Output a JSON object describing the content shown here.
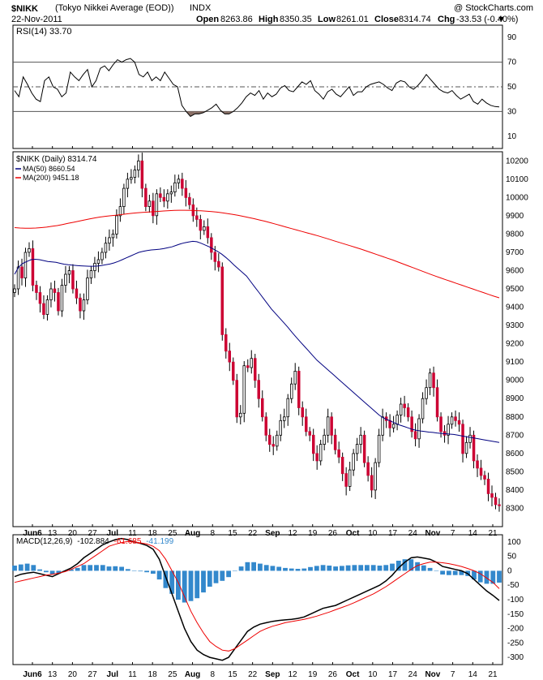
{
  "header": {
    "symbol": "$NIKK",
    "name": "(Tokyo Nikkei Average (EOD))",
    "exchange": "INDX",
    "watermark": "@ StockCharts.com",
    "date": "22-Nov-2011",
    "open_label": "Open",
    "open": "8263.86",
    "high_label": "High",
    "high": "8350.35",
    "low_label": "Low",
    "low": "8261.01",
    "close_label": "Close",
    "close": "8314.74",
    "chg_label": "Chg",
    "chg": "-33.53 (-0.40%)",
    "chg_arrow": "▼",
    "down_color": "#cc0033"
  },
  "chart_data": [
    {
      "type": "line",
      "panel": "rsi",
      "legend": "RSI(14) 33.70",
      "ylim": [
        0,
        100
      ],
      "yticks": [
        10,
        30,
        50,
        70,
        90
      ],
      "ref_lines": [
        30,
        50,
        70
      ],
      "series": [
        {
          "name": "RSI(14)",
          "color": "#000000",
          "values": [
            47,
            42,
            58,
            52,
            45,
            40,
            38,
            55,
            58,
            50,
            48,
            42,
            45,
            62,
            58,
            55,
            60,
            64,
            50,
            55,
            65,
            67,
            63,
            68,
            72,
            70,
            72,
            73,
            70,
            60,
            58,
            62,
            55,
            58,
            55,
            62,
            57,
            52,
            50,
            35,
            30,
            26,
            28,
            28,
            29,
            31,
            33,
            36,
            31,
            28,
            28,
            30,
            33,
            37,
            42,
            45,
            43,
            47,
            40,
            45,
            42,
            44,
            49,
            51,
            47,
            46,
            50,
            54,
            52,
            55,
            47,
            44,
            40,
            46,
            48,
            44,
            42,
            46,
            50,
            43,
            46,
            46,
            50,
            52,
            53,
            54,
            52,
            49,
            47,
            53,
            55,
            54,
            50,
            48,
            51,
            55,
            60,
            56,
            52,
            48,
            46,
            45,
            47,
            43,
            40,
            42,
            44,
            38,
            36,
            40,
            37,
            35,
            34,
            33.7
          ]
        }
      ]
    },
    {
      "type": "candlestick",
      "panel": "price",
      "legend_title": "$NIKK (Daily) 8314.74",
      "legend_series": [
        {
          "name": "MA(50) 8660.54",
          "color": "#000080"
        },
        {
          "name": "MA(200) 9451.18",
          "color": "#ee0000"
        }
      ],
      "ylim": [
        8200,
        10250
      ],
      "yticks": [
        8300,
        8400,
        8500,
        8600,
        8700,
        8800,
        8900,
        9000,
        9100,
        9200,
        9300,
        9400,
        9500,
        9600,
        9700,
        9800,
        9900,
        10000,
        10100,
        10200
      ],
      "up_color": "#ffffff",
      "down_color": "#cc0033",
      "close": [
        9500,
        9620,
        9560,
        9700,
        9720,
        9520,
        9480,
        9420,
        9360,
        9440,
        9500,
        9480,
        9380,
        9520,
        9580,
        9600,
        9500,
        9450,
        9380,
        9440,
        9560,
        9600,
        9640,
        9660,
        9700,
        9750,
        9780,
        9800,
        9900,
        9950,
        10050,
        10100,
        10110,
        10150,
        10200,
        10050,
        9950,
        9980,
        9900,
        10020,
        10000,
        9980,
        10020,
        10030,
        10080,
        10100,
        10050,
        10000,
        9960,
        9900,
        9880,
        9820,
        9840,
        9780,
        9700,
        9650,
        9620,
        9250,
        9160,
        9100,
        9000,
        8800,
        8820,
        9080,
        9070,
        9120,
        9000,
        8900,
        8800,
        8700,
        8650,
        8640,
        8700,
        8780,
        8800,
        8900,
        8980,
        9050,
        8850,
        8800,
        8720,
        8700,
        8600,
        8560,
        8650,
        8700,
        8800,
        8700,
        8620,
        8580,
        8490,
        8420,
        8510,
        8600,
        8650,
        8700,
        8550,
        8480,
        8400,
        8550,
        8700,
        8800,
        8780,
        8740,
        8760,
        8810,
        8870,
        8850,
        8800,
        8720,
        8680,
        8790,
        8900,
        8960,
        9040,
        8960,
        8800,
        8720,
        8700,
        8760,
        8800,
        8780,
        8760,
        8600,
        8660,
        8700,
        8560,
        8520,
        8480,
        8460,
        8380,
        8360,
        8320,
        8314.74
      ],
      "series": [
        {
          "name": "MA(50)",
          "color": "#000080",
          "values": [
            9580,
            9620,
            9640,
            9650,
            9660,
            9662,
            9660,
            9655,
            9650,
            9648,
            9645,
            9640,
            9635,
            9632,
            9630,
            9628,
            9626,
            9625,
            9624,
            9624,
            9625,
            9628,
            9632,
            9636,
            9642,
            9650,
            9660,
            9670,
            9680,
            9690,
            9700,
            9705,
            9710,
            9713,
            9715,
            9717,
            9720,
            9725,
            9730,
            9738,
            9746,
            9752,
            9756,
            9760,
            9758,
            9750,
            9740,
            9730,
            9718,
            9705,
            9690,
            9672,
            9652,
            9630,
            9610,
            9590,
            9570,
            9540,
            9510,
            9480,
            9450,
            9420,
            9390,
            9365,
            9340,
            9315,
            9290,
            9262,
            9235,
            9210,
            9185,
            9160,
            9135,
            9110,
            9090,
            9070,
            9050,
            9030,
            9010,
            8990,
            8970,
            8950,
            8930,
            8910,
            8890,
            8870,
            8850,
            8830,
            8810,
            8795,
            8785,
            8775,
            8765,
            8755,
            8748,
            8740,
            8732,
            8727,
            8723,
            8720,
            8717,
            8715,
            8712,
            8710,
            8708,
            8706,
            8704,
            8700,
            8696,
            8692,
            8688,
            8684,
            8680,
            8676,
            8672,
            8668,
            8664,
            8660.54
          ]
        },
        {
          "name": "MA(200)",
          "color": "#ee0000",
          "values": [
            9835,
            9833,
            9832,
            9832,
            9833,
            9835,
            9838,
            9842,
            9846,
            9852,
            9858,
            9864,
            9870,
            9876,
            9882,
            9888,
            9893,
            9897,
            9900,
            9903,
            9906,
            9910,
            9913,
            9916,
            9918,
            9920,
            9922,
            9924,
            9926,
            9928,
            9929,
            9930,
            9930,
            9929,
            9928,
            9927,
            9925,
            9923,
            9920,
            9916,
            9912,
            9907,
            9902,
            9896,
            9890,
            9884,
            9877,
            9870,
            9862,
            9854,
            9846,
            9838,
            9830,
            9822,
            9814,
            9806,
            9798,
            9790,
            9781,
            9772,
            9763,
            9754,
            9745,
            9736,
            9727,
            9718,
            9708,
            9698,
            9688,
            9678,
            9668,
            9658,
            9647,
            9636,
            9625,
            9614,
            9603,
            9592,
            9581,
            9570,
            9560,
            9550,
            9540,
            9530,
            9520,
            9510,
            9500,
            9490,
            9480,
            9470,
            9460,
            9451.18
          ]
        }
      ]
    },
    {
      "type": "line",
      "panel": "macd",
      "legend_prefix": "MACD(12,26,9)",
      "legend_macd": "-102.884",
      "legend_signal": "-61.685",
      "legend_hist": "-41.199",
      "macd_color": "#000000",
      "signal_color": "#ee0000",
      "hist_color": "#3388cc",
      "ylim": [
        -325,
        125
      ],
      "yticks": [
        100,
        50,
        0,
        -50,
        -100,
        -150,
        -200,
        -250,
        -300
      ],
      "series": [
        {
          "name": "MACD",
          "color": "#000000",
          "values": [
            -20,
            -12,
            -8,
            -5,
            -10,
            -15,
            -20,
            -10,
            0,
            10,
            25,
            45,
            60,
            75,
            90,
            100,
            108,
            112,
            108,
            100,
            95,
            88,
            75,
            40,
            -20,
            -80,
            -140,
            -200,
            -245,
            -275,
            -290,
            -300,
            -305,
            -310,
            -300,
            -270,
            -240,
            -210,
            -195,
            -185,
            -180,
            -175,
            -172,
            -170,
            -168,
            -165,
            -160,
            -150,
            -140,
            -130,
            -125,
            -120,
            -110,
            -100,
            -90,
            -80,
            -70,
            -60,
            -50,
            -35,
            -15,
            10,
            30,
            45,
            48,
            44,
            40,
            30,
            15,
            10,
            5,
            0,
            -10,
            -30,
            -50,
            -70,
            -85,
            -102.884
          ]
        },
        {
          "name": "Signal",
          "color": "#ee0000",
          "values": [
            -40,
            -35,
            -30,
            -25,
            -20,
            -15,
            -12,
            -8,
            -3,
            5,
            15,
            25,
            40,
            55,
            70,
            85,
            92,
            98,
            102,
            100,
            97,
            93,
            85,
            70,
            40,
            0,
            -40,
            -90,
            -140,
            -180,
            -215,
            -245,
            -262,
            -275,
            -278,
            -270,
            -255,
            -240,
            -225,
            -210,
            -200,
            -192,
            -186,
            -180,
            -176,
            -172,
            -168,
            -163,
            -157,
            -150,
            -143,
            -135,
            -127,
            -119,
            -110,
            -100,
            -90,
            -80,
            -68,
            -55,
            -40,
            -25,
            -10,
            5,
            18,
            25,
            30,
            30,
            28,
            25,
            20,
            15,
            8,
            0,
            -10,
            -25,
            -40,
            -61.685
          ]
        }
      ],
      "histogram": [
        18,
        22,
        25,
        20,
        5,
        -5,
        -12,
        -8,
        -2,
        5,
        10,
        20,
        20,
        20,
        20,
        15,
        16,
        14,
        6,
        0,
        -2,
        -5,
        -10,
        -30,
        -60,
        -80,
        -100,
        -110,
        -105,
        -95,
        -75,
        -55,
        -43,
        -35,
        -22,
        0,
        15,
        30,
        30,
        25,
        20,
        17,
        14,
        10,
        8,
        7,
        8,
        13,
        17,
        20,
        18,
        15,
        17,
        19,
        20,
        20,
        20,
        20,
        18,
        20,
        25,
        35,
        40,
        40,
        30,
        19,
        10,
        0,
        -13,
        -15,
        -15,
        -15,
        -18,
        -30,
        -40,
        -45,
        -45,
        -41.199
      ]
    }
  ],
  "x_axis": {
    "labels": [
      "Jun6",
      "13",
      "20",
      "27",
      "Jul",
      "11",
      "18",
      "25",
      "Aug",
      "8",
      "15",
      "22",
      "Sep",
      "12",
      "19",
      "26",
      "Oct",
      "10",
      "17",
      "24",
      "Nov",
      "7",
      "14",
      "21"
    ],
    "bold": [
      "Jun6",
      "Jul",
      "Aug",
      "Sep",
      "Oct",
      "Nov"
    ]
  }
}
